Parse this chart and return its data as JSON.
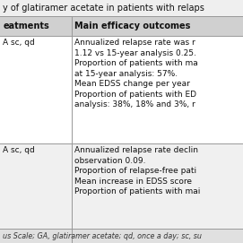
{
  "title_text": "y of glatiramer acetate in patients with relaps",
  "col1_header": "eatments",
  "col2_header": "Main efficacy outcomes",
  "rows": [
    {
      "col1": "A sc, qd",
      "col2": "Annualized relapse rate was r\n1.12 vs 15-year analysis 0.25.\nProportion of patients with ma\nat 15-year analysis: 57%.\nMean EDSS change per year\nProportion of patients with ED\nanalysis: 38%, 18% and 3%, r"
    },
    {
      "col1": "A sc, qd",
      "col2": "Annualized relapse rate declin\nobservation 0.09.\nProportion of relapse-free pati\nMean increase in EDSS score\nProportion of patients with mai"
    }
  ],
  "footer": "us Scale; GA, glatiramer acetate; qd, once a day; sc, su",
  "title_bg": "#efefef",
  "header_bg": "#d0d0d0",
  "row1_bg": "#ffffff",
  "row2_bg": "#f0f0f0",
  "footer_bg": "#e0e0e0",
  "line_color": "#999999",
  "text_color": "#111111",
  "footer_color": "#333333",
  "font_size": 6.5,
  "header_font_size": 7.0,
  "title_font_size": 7.0,
  "col_split": 0.295,
  "fig_width": 2.71,
  "fig_height": 2.71,
  "dpi": 100
}
